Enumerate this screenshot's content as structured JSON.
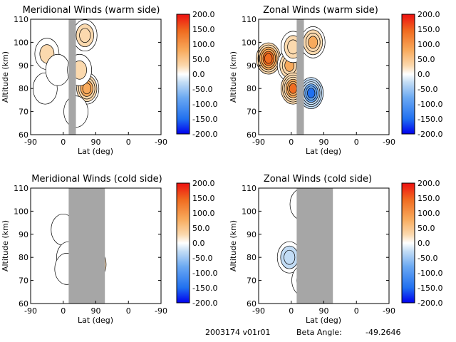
{
  "chart_data": [
    {
      "type": "heatmap",
      "title": "Meridional Winds (warm side)",
      "xlabel": "Lat (deg)",
      "ylabel": "Altitude (km)",
      "xticks": [
        "-90",
        "0",
        "90",
        "0",
        "-90"
      ],
      "yticks": [
        60,
        70,
        80,
        90,
        100,
        110
      ],
      "ylim": [
        60,
        110
      ],
      "no_data_band_lat": [
        -55,
        -75
      ],
      "features": [
        {
          "lat": -135,
          "alt": 95,
          "value": 70
        },
        {
          "lat": -140,
          "alt": 80,
          "value": -40
        },
        {
          "lat": -105,
          "alt": 88,
          "value": -30
        },
        {
          "lat": -30,
          "alt": 103,
          "value": 100
        },
        {
          "lat": -25,
          "alt": 80,
          "value": 140
        },
        {
          "lat": -45,
          "alt": 88,
          "value": 60
        },
        {
          "lat": -55,
          "alt": 70,
          "value": -35
        }
      ]
    },
    {
      "type": "heatmap",
      "title": "Zonal Winds (warm side)",
      "xlabel": "Lat (deg)",
      "ylabel": "Altitude (km)",
      "xticks": [
        "-90",
        "0",
        "90",
        "0",
        "-90"
      ],
      "yticks": [
        60,
        70,
        80,
        90,
        100,
        110
      ],
      "ylim": [
        60,
        110
      ],
      "no_data_band_lat": [
        -55,
        -75
      ],
      "features": [
        {
          "lat": -153,
          "alt": 93,
          "value": 190
        },
        {
          "lat": -95,
          "alt": 90,
          "value": 110
        },
        {
          "lat": -85,
          "alt": 80,
          "value": 170
        },
        {
          "lat": -85,
          "alt": 98,
          "value": 80
        },
        {
          "lat": -35,
          "alt": 78,
          "value": -170
        },
        {
          "lat": -30,
          "alt": 100,
          "value": 110
        }
      ]
    },
    {
      "type": "heatmap",
      "title": "Meridional Winds (cold side)",
      "xlabel": "Lat (deg)",
      "ylabel": "Altitude (km)",
      "xticks": [
        "-90",
        "0",
        "90",
        "0",
        "-90"
      ],
      "yticks": [
        60,
        70,
        80,
        90,
        100,
        110
      ],
      "ylim": [
        60,
        110
      ],
      "no_data_band_lat": [
        -75,
        25
      ],
      "features": [
        {
          "lat": -15,
          "alt": 102,
          "value": 110
        },
        {
          "lat": -5,
          "alt": 77,
          "value": 170
        },
        {
          "lat": -45,
          "alt": 88,
          "value": 60
        },
        {
          "lat": -90,
          "alt": 92,
          "value": -30
        },
        {
          "lat": -75,
          "alt": 80,
          "value": -30
        },
        {
          "lat": -80,
          "alt": 75,
          "value": -25
        }
      ]
    },
    {
      "type": "heatmap",
      "title": "Zonal Winds (cold side)",
      "xlabel": "Lat (deg)",
      "ylabel": "Altitude (km)",
      "xticks": [
        "-90",
        "0",
        "90",
        "0",
        "-90"
      ],
      "yticks": [
        60,
        70,
        80,
        90,
        100,
        110
      ],
      "ylim": [
        60,
        110
      ],
      "no_data_band_lat": [
        -75,
        25
      ],
      "features": [
        {
          "lat": -15,
          "alt": 98,
          "value": 190
        },
        {
          "lat": -20,
          "alt": 84,
          "value": 120
        },
        {
          "lat": -60,
          "alt": 103,
          "value": 40
        },
        {
          "lat": -20,
          "alt": 77,
          "value": -110
        },
        {
          "lat": -95,
          "alt": 80,
          "value": -100
        },
        {
          "lat": -55,
          "alt": 70,
          "value": -50
        }
      ]
    }
  ],
  "colorbar": {
    "ticks": [
      "200.0",
      "150.0",
      "100.0",
      "50.0",
      "0.0",
      "-50.0",
      "-100.0",
      "-150.0",
      "-200.0"
    ],
    "range": [
      -200,
      200
    ],
    "colors": [
      "#0000ee",
      "#2070f0",
      "#6aa8f2",
      "#c2dcf5",
      "#ffffff",
      "#fbd9ae",
      "#f8aa5c",
      "#f06c20",
      "#ee1010"
    ]
  },
  "footer": {
    "run_id": "2003174 v01r01",
    "beta_label": "Beta Angle:",
    "beta_value": "-49.2646"
  }
}
